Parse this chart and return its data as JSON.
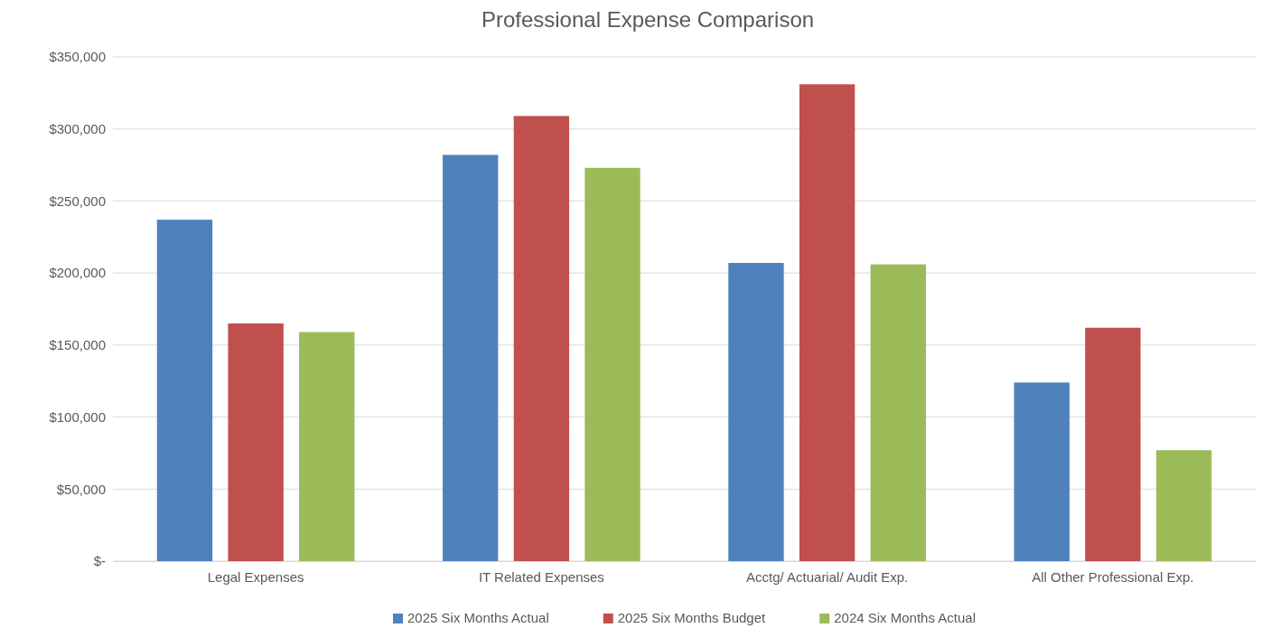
{
  "chart_data": {
    "type": "bar",
    "title": "Professional Expense Comparison",
    "categories": [
      "Legal Expenses",
      "IT Related Expenses",
      "Acctg/ Actuarial/ Audit Exp.",
      "All Other Professional Exp."
    ],
    "series": [
      {
        "name": "2025 Six Months Actual",
        "color": "#4f81bd",
        "values": [
          237000,
          282000,
          207000,
          124000
        ]
      },
      {
        "name": "2025 Six Months Budget",
        "color": "#c0504d",
        "values": [
          165000,
          309000,
          331000,
          162000
        ]
      },
      {
        "name": "2024 Six Months Actual",
        "color": "#9bbb59",
        "values": [
          159000,
          273000,
          206000,
          77000
        ]
      }
    ],
    "ylim": [
      0,
      350000
    ],
    "yticks": [
      {
        "value": 0,
        "label": "$-"
      },
      {
        "value": 50000,
        "label": "$50,000"
      },
      {
        "value": 100000,
        "label": "$100,000"
      },
      {
        "value": 150000,
        "label": "$150,000"
      },
      {
        "value": 200000,
        "label": "$200,000"
      },
      {
        "value": 250000,
        "label": "$250,000"
      },
      {
        "value": 300000,
        "label": "$300,000"
      },
      {
        "value": 350000,
        "label": "$350,000"
      }
    ],
    "grid": "y",
    "legend": "bottom"
  }
}
